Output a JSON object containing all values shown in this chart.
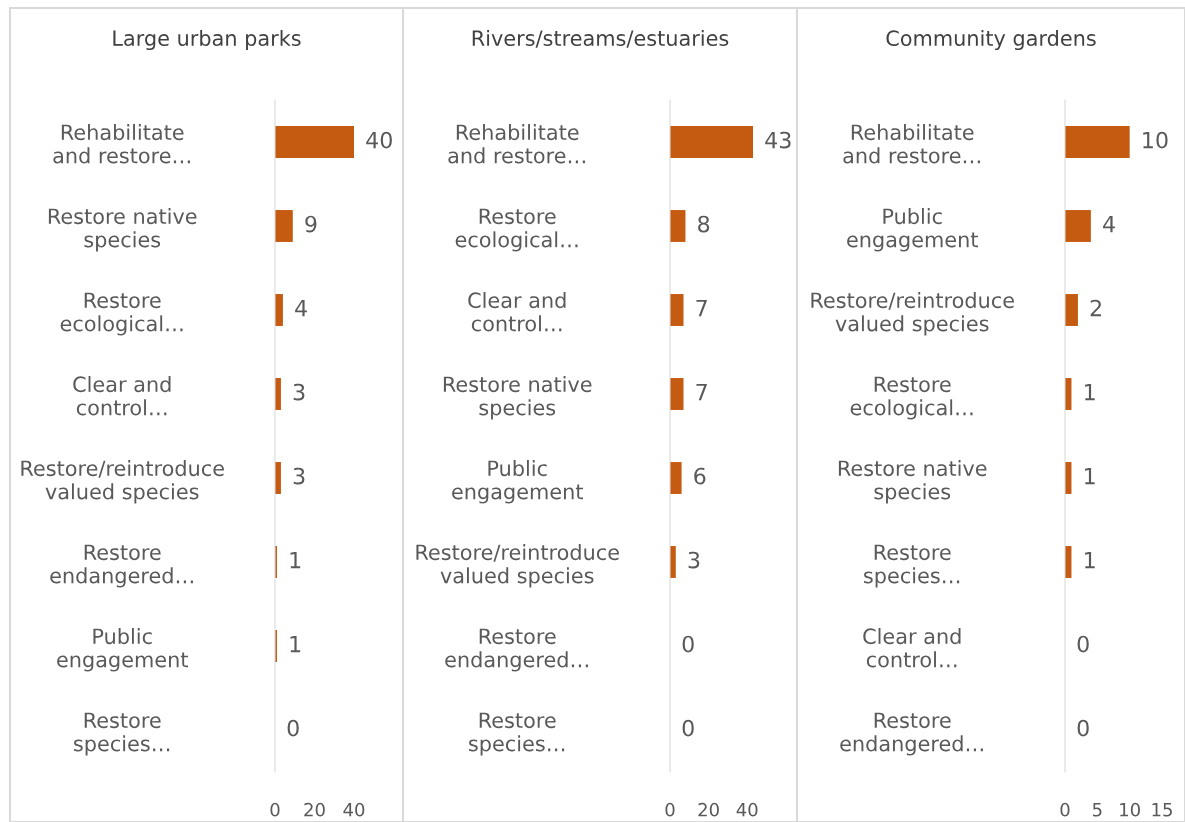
{
  "chart_data": [
    {
      "type": "bar",
      "orientation": "horizontal",
      "title": "Large urban parks",
      "categories": [
        "Rehabilitate\nand restore…",
        "Restore native\nspecies",
        "Restore\necological…",
        "Clear and\ncontrol…",
        "Restore/reintroduce\nvalued species",
        "Restore\nendangered…",
        "Public\nengagement",
        "Restore\nspecies…"
      ],
      "values": [
        40,
        9,
        4,
        3,
        3,
        1,
        1,
        0
      ],
      "color": "#c55a11",
      "xlim": [
        0,
        40
      ],
      "xticks": [
        0,
        20,
        40
      ],
      "data_labels": true,
      "grid": false,
      "legend": false
    },
    {
      "type": "bar",
      "orientation": "horizontal",
      "title": "Rivers/streams/estuaries",
      "categories": [
        "Rehabilitate\nand restore…",
        "Restore\necological…",
        "Clear and\ncontrol…",
        "Restore native\nspecies",
        "Public\nengagement",
        "Restore/reintroduce\nvalued species",
        "Restore\nendangered…",
        "Restore\nspecies…"
      ],
      "values": [
        43,
        8,
        7,
        7,
        6,
        3,
        0,
        0
      ],
      "color": "#c55a11",
      "xlim": [
        0,
        43
      ],
      "xticks": [
        0,
        20,
        40
      ],
      "data_labels": true,
      "grid": false,
      "legend": false
    },
    {
      "type": "bar",
      "orientation": "horizontal",
      "title": "Community gardens",
      "categories": [
        "Rehabilitate\nand restore…",
        "Public\nengagement",
        "Restore/reintroduce\nvalued species",
        "Restore\necological…",
        "Restore native\nspecies",
        "Restore\nspecies…",
        "Clear and\ncontrol…",
        "Restore\nendangered…"
      ],
      "values": [
        10,
        4,
        2,
        1,
        1,
        1,
        0,
        0
      ],
      "color": "#c55a11",
      "xlim": [
        0,
        15
      ],
      "xticks": [
        0,
        5,
        10,
        15
      ],
      "data_labels": true,
      "grid": false,
      "legend": false
    }
  ]
}
